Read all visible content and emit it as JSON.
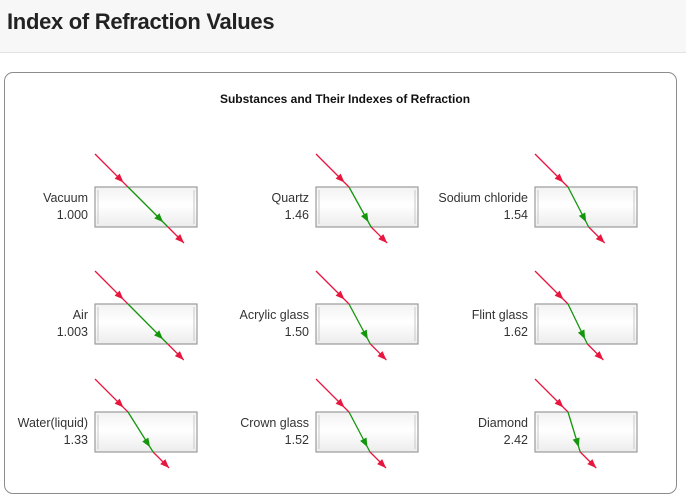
{
  "header": {
    "title": "Index of Refraction Values"
  },
  "figure": {
    "title": "Substances and Their Indexes of Refraction",
    "colors": {
      "incident": "#e8163f",
      "refracted": "#14960c",
      "block_border": "#9b9b9b"
    },
    "substances": [
      {
        "name": "Vacuum",
        "n": "1.000"
      },
      {
        "name": "Quartz",
        "n": "1.46"
      },
      {
        "name": "Sodium chloride",
        "n": "1.54"
      },
      {
        "name": "Air",
        "n": "1.003"
      },
      {
        "name": "Acrylic glass",
        "n": "1.50"
      },
      {
        "name": "Flint glass",
        "n": "1.62"
      },
      {
        "name": "Water(liquid)",
        "n": "1.33"
      },
      {
        "name": "Crown glass",
        "n": "1.52"
      },
      {
        "name": "Diamond",
        "n": "2.42"
      }
    ]
  }
}
